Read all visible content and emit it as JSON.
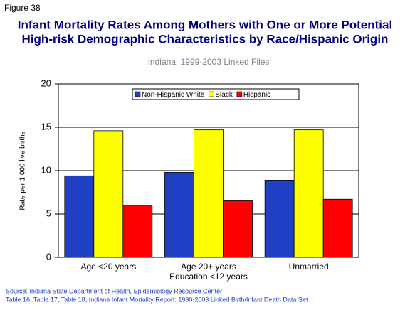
{
  "chart_data": {
    "type": "bar",
    "figure_label": "Figure 38",
    "title": [
      "Infant Mortality Rates Among Mothers with One or More Potential",
      "High-risk Demographic Characteristics by Race/Hispanic Origin"
    ],
    "subtitle": "Indiana, 1999-2003 Linked Files",
    "y_label": "Rate per 1,000 live births",
    "categories": [
      "Age <20 years",
      "Age 20+ years\nEducation <12 years",
      "Unmarried"
    ],
    "series": [
      {
        "name": "Non-Hispanic White",
        "color": "#1f3fc4",
        "values": [
          9.4,
          9.8,
          8.9
        ]
      },
      {
        "name": "Black",
        "color": "#ffff00",
        "values": [
          14.6,
          14.7,
          14.7
        ]
      },
      {
        "name": "Hispanic",
        "color": "#ff0000",
        "values": [
          6.0,
          6.6,
          6.7
        ]
      }
    ],
    "ylim": [
      0,
      20
    ],
    "yticks": [
      0,
      5,
      10,
      15,
      20
    ],
    "grid": true,
    "legend": "top",
    "source": [
      "Source: Indiana State Department of Health, Epidemiology Resource Center",
      "Table 16, Table 17, Table 18, Indiana Infant Mortality Report: 1990-2003 Linked Birth/Infant Death Data Set"
    ]
  }
}
